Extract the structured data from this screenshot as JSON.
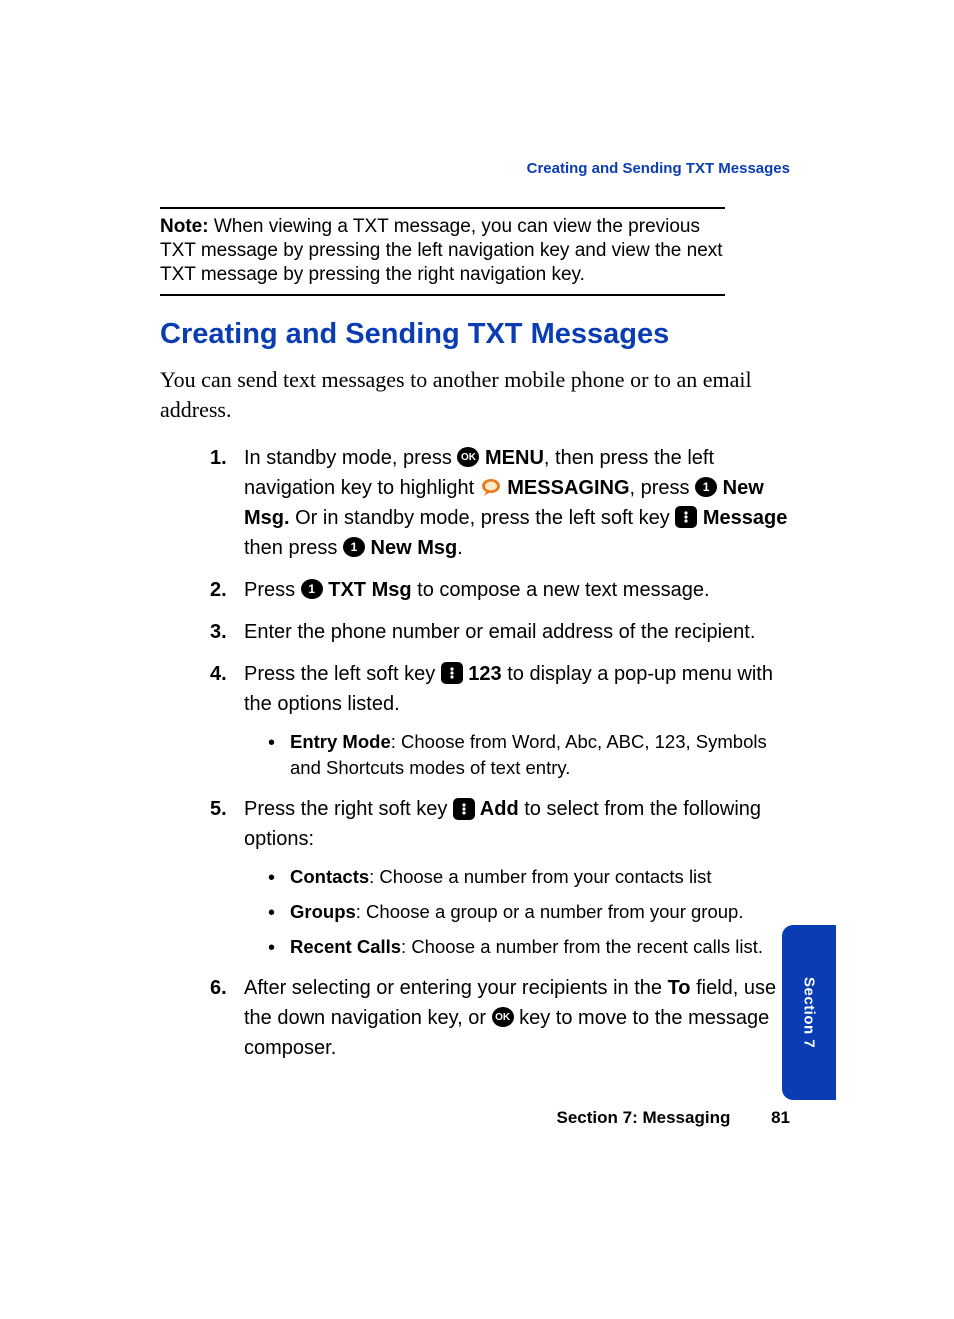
{
  "colors": {
    "accent": "#0a3db4",
    "text": "#000000",
    "background": "#ffffff",
    "icon_bg": "#000000",
    "icon_fg": "#ffffff"
  },
  "typography": {
    "body_font": "Arial, Helvetica, sans-serif",
    "intro_font": "Georgia, 'Times New Roman', serif",
    "title_size_pt": 22,
    "body_size_pt": 15,
    "sub_size_pt": 14,
    "header_size_pt": 11
  },
  "header": {
    "breadcrumb": "Creating and Sending TXT Messages"
  },
  "note": {
    "label": "Note:",
    "text": "When viewing a TXT message, you can view the previous TXT message by pressing the left navigation key and view the next TXT message by pressing the right navigation key."
  },
  "title": "Creating and Sending TXT Messages",
  "intro": "You can send text messages to another mobile phone or to an email address.",
  "icons": {
    "ok": "OK",
    "one": "1",
    "messaging": "messaging-icon",
    "softkey": "softkey-icon"
  },
  "steps": [
    {
      "parts": [
        {
          "t": "text",
          "v": "In standby mode, press "
        },
        {
          "t": "icon",
          "v": "ok"
        },
        {
          "t": "bold",
          "v": " MENU"
        },
        {
          "t": "text",
          "v": ", then press the left navigation key to highlight "
        },
        {
          "t": "icon",
          "v": "messaging"
        },
        {
          "t": "bold",
          "v": " MESSAGING"
        },
        {
          "t": "text",
          "v": ", press "
        },
        {
          "t": "icon",
          "v": "one"
        },
        {
          "t": "bold",
          "v": " New Msg."
        },
        {
          "t": "text",
          "v": " Or in standby mode, press the left soft key "
        },
        {
          "t": "icon",
          "v": "softkey"
        },
        {
          "t": "bold",
          "v": " Message"
        },
        {
          "t": "text",
          "v": " then press "
        },
        {
          "t": "icon",
          "v": "one"
        },
        {
          "t": "bold",
          "v": " New Msg"
        },
        {
          "t": "text",
          "v": "."
        }
      ]
    },
    {
      "parts": [
        {
          "t": "text",
          "v": "Press "
        },
        {
          "t": "icon",
          "v": "one"
        },
        {
          "t": "bold",
          "v": " TXT Msg"
        },
        {
          "t": "text",
          "v": " to compose a new text message."
        }
      ]
    },
    {
      "parts": [
        {
          "t": "text",
          "v": "Enter the phone number or email address of the recipient."
        }
      ]
    },
    {
      "parts": [
        {
          "t": "text",
          "v": "Press the left soft key "
        },
        {
          "t": "icon",
          "v": "softkey"
        },
        {
          "t": "bold",
          "v": " 123"
        },
        {
          "t": "text",
          "v": " to display a pop-up menu with the options listed."
        }
      ],
      "sub": [
        {
          "label": "Entry Mode",
          "desc": ": Choose from Word, Abc, ABC, 123, Symbols and Shortcuts modes of text entry."
        }
      ]
    },
    {
      "parts": [
        {
          "t": "text",
          "v": "Press the right soft key "
        },
        {
          "t": "icon",
          "v": "softkey"
        },
        {
          "t": "bold",
          "v": " Add"
        },
        {
          "t": "text",
          "v": " to select from the following options:"
        }
      ],
      "sub": [
        {
          "label": "Contacts",
          "desc": ": Choose a number from your contacts list"
        },
        {
          "label": "Groups",
          "desc": ": Choose a group or a number from your group."
        },
        {
          "label": "Recent Calls",
          "desc": ": Choose a number from the recent calls list."
        }
      ]
    },
    {
      "parts": [
        {
          "t": "text",
          "v": "After selecting or entering your recipients in the "
        },
        {
          "t": "bold",
          "v": "To"
        },
        {
          "t": "text",
          "v": " field, use the down navigation key, or "
        },
        {
          "t": "icon",
          "v": "ok"
        },
        {
          "t": "text",
          "v": " key to move to the message composer."
        }
      ]
    }
  ],
  "footer": {
    "section_label": "Section 7: Messaging",
    "page_number": "81"
  },
  "sidetab": {
    "label": "Section 7"
  }
}
